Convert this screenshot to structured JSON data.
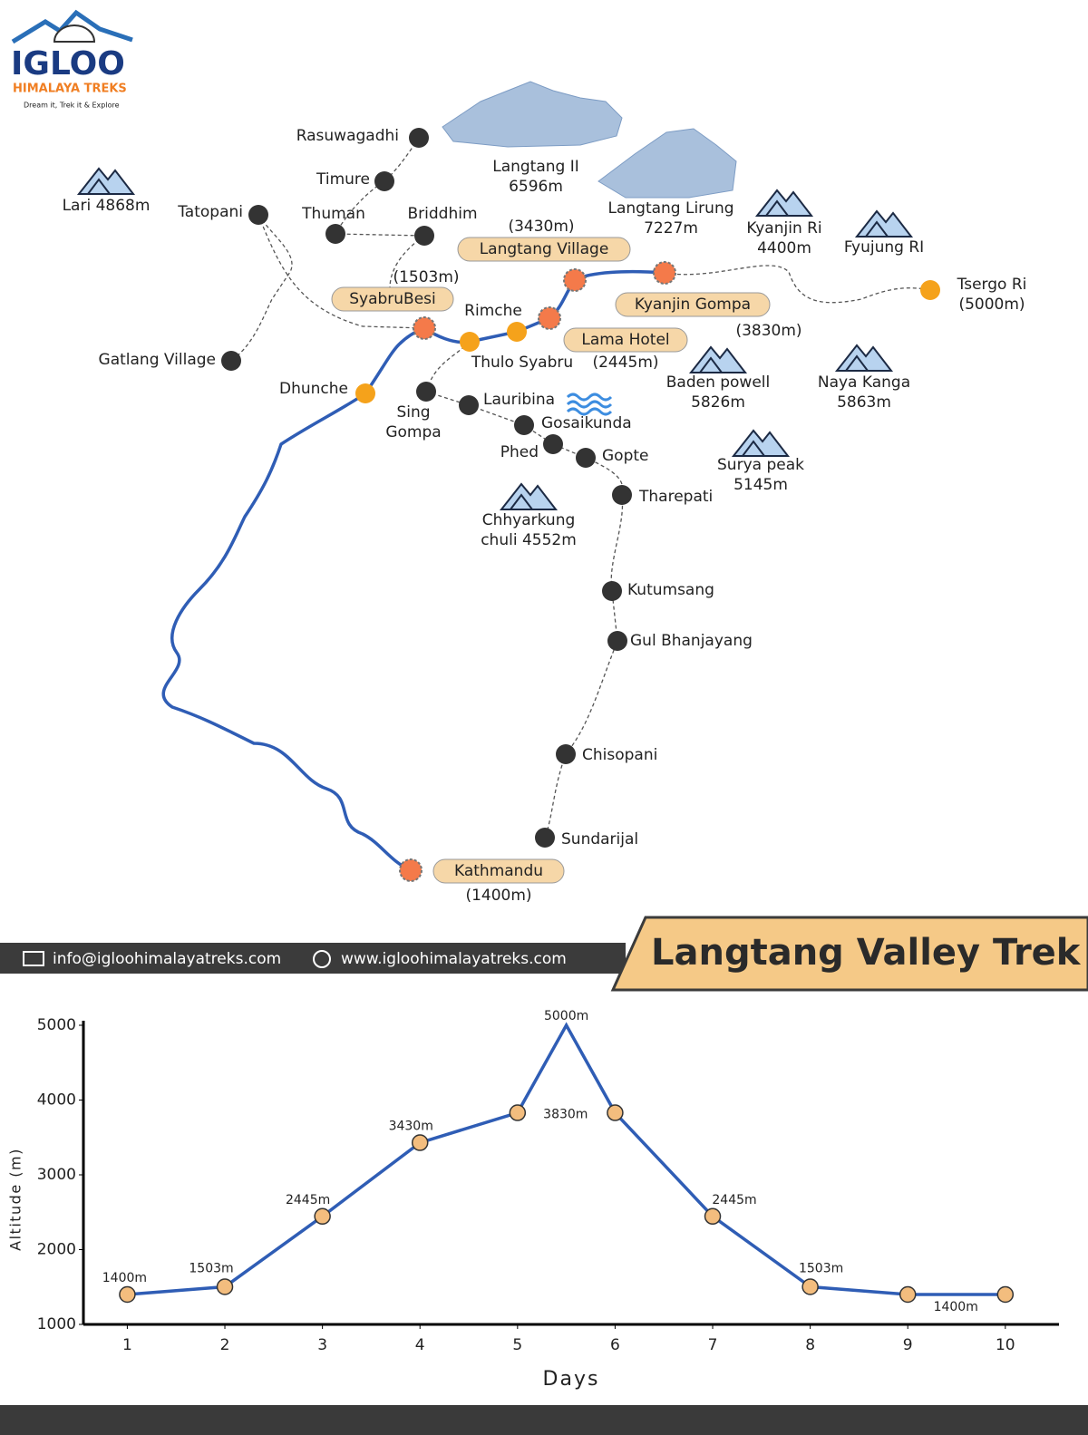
{
  "logo": {
    "name": "IGLOO",
    "tagline": "HIMALAYA TREKS",
    "slogan": "Dream it, Trek it & Explore"
  },
  "map": {
    "places": [
      [
        "Rasuwagadhi"
      ],
      [
        "Timure"
      ],
      [
        "Thuman"
      ],
      [
        "Briddhim"
      ],
      [
        "Tatopani"
      ],
      [
        "Gatlang Village"
      ],
      [
        "Dhunche"
      ],
      [
        "Rimche"
      ],
      [
        "Thulo Syabru"
      ],
      [
        "Sing",
        "Gompa"
      ],
      [
        "Lauribina"
      ],
      [
        "Gosaikunda"
      ],
      [
        "Phed"
      ],
      [
        "Gopte"
      ],
      [
        "Tharepati"
      ],
      [
        "Kutumsang"
      ],
      [
        "Gul Bhanjayang"
      ],
      [
        "Chisopani"
      ],
      [
        "Sundarijal"
      ],
      [
        "Tsergo Ri",
        "(5000m)"
      ]
    ],
    "stops": [
      {
        "name": "SyabruBesi",
        "altitude": "(1503m)"
      },
      {
        "name": "Langtang Village",
        "altitude": "(3430m)"
      },
      {
        "name": "Kyanjin Gompa",
        "altitude": "(3830m)"
      },
      {
        "name": "Lama Hotel",
        "altitude": "(2445m)"
      },
      {
        "name": "Kathmandu",
        "altitude": "(1400m)"
      }
    ],
    "peaks": [
      [
        "Lari 4868m"
      ],
      [
        "Langtang II",
        "6596m"
      ],
      [
        "Langtang Lirung",
        "7227m"
      ],
      [
        "Kyanjin Ri",
        "4400m"
      ],
      [
        "Fyujung RI"
      ],
      [
        "Baden powell",
        "5826m"
      ],
      [
        "Naya Kanga",
        "5863m"
      ],
      [
        "Surya peak",
        "5145m"
      ],
      [
        "Chhyarkung",
        "chuli 4552m"
      ]
    ]
  },
  "footer": {
    "email": "info@igloohimalayatreks.com",
    "website": "www.igloohimalayatreks.com",
    "title": "Langtang Valley Trek"
  },
  "chart_data": {
    "type": "line",
    "x_label": "Days",
    "y_label": "Altitude (m)",
    "color": "#2f5db5",
    "marker_color": "#f3bd7e",
    "x": [
      1,
      2,
      3,
      4,
      5,
      5.5,
      6,
      7,
      8,
      9,
      10
    ],
    "values": [
      1400,
      1503,
      2445,
      3430,
      3830,
      5000,
      3830,
      2445,
      1503,
      1400,
      1400
    ],
    "value_labels": [
      "1400m",
      "1503m",
      "2445m",
      "3430m",
      "3830m",
      "5000m",
      null,
      "2445m",
      "1503m",
      "1400m",
      null
    ],
    "xlim": [
      0.55,
      10.55
    ],
    "xticks": [
      1,
      2,
      3,
      4,
      5,
      6,
      7,
      8,
      9,
      10
    ],
    "ylim": [
      1000,
      5000
    ],
    "yticks": [
      1000,
      2000,
      3000,
      4000,
      5000
    ]
  }
}
